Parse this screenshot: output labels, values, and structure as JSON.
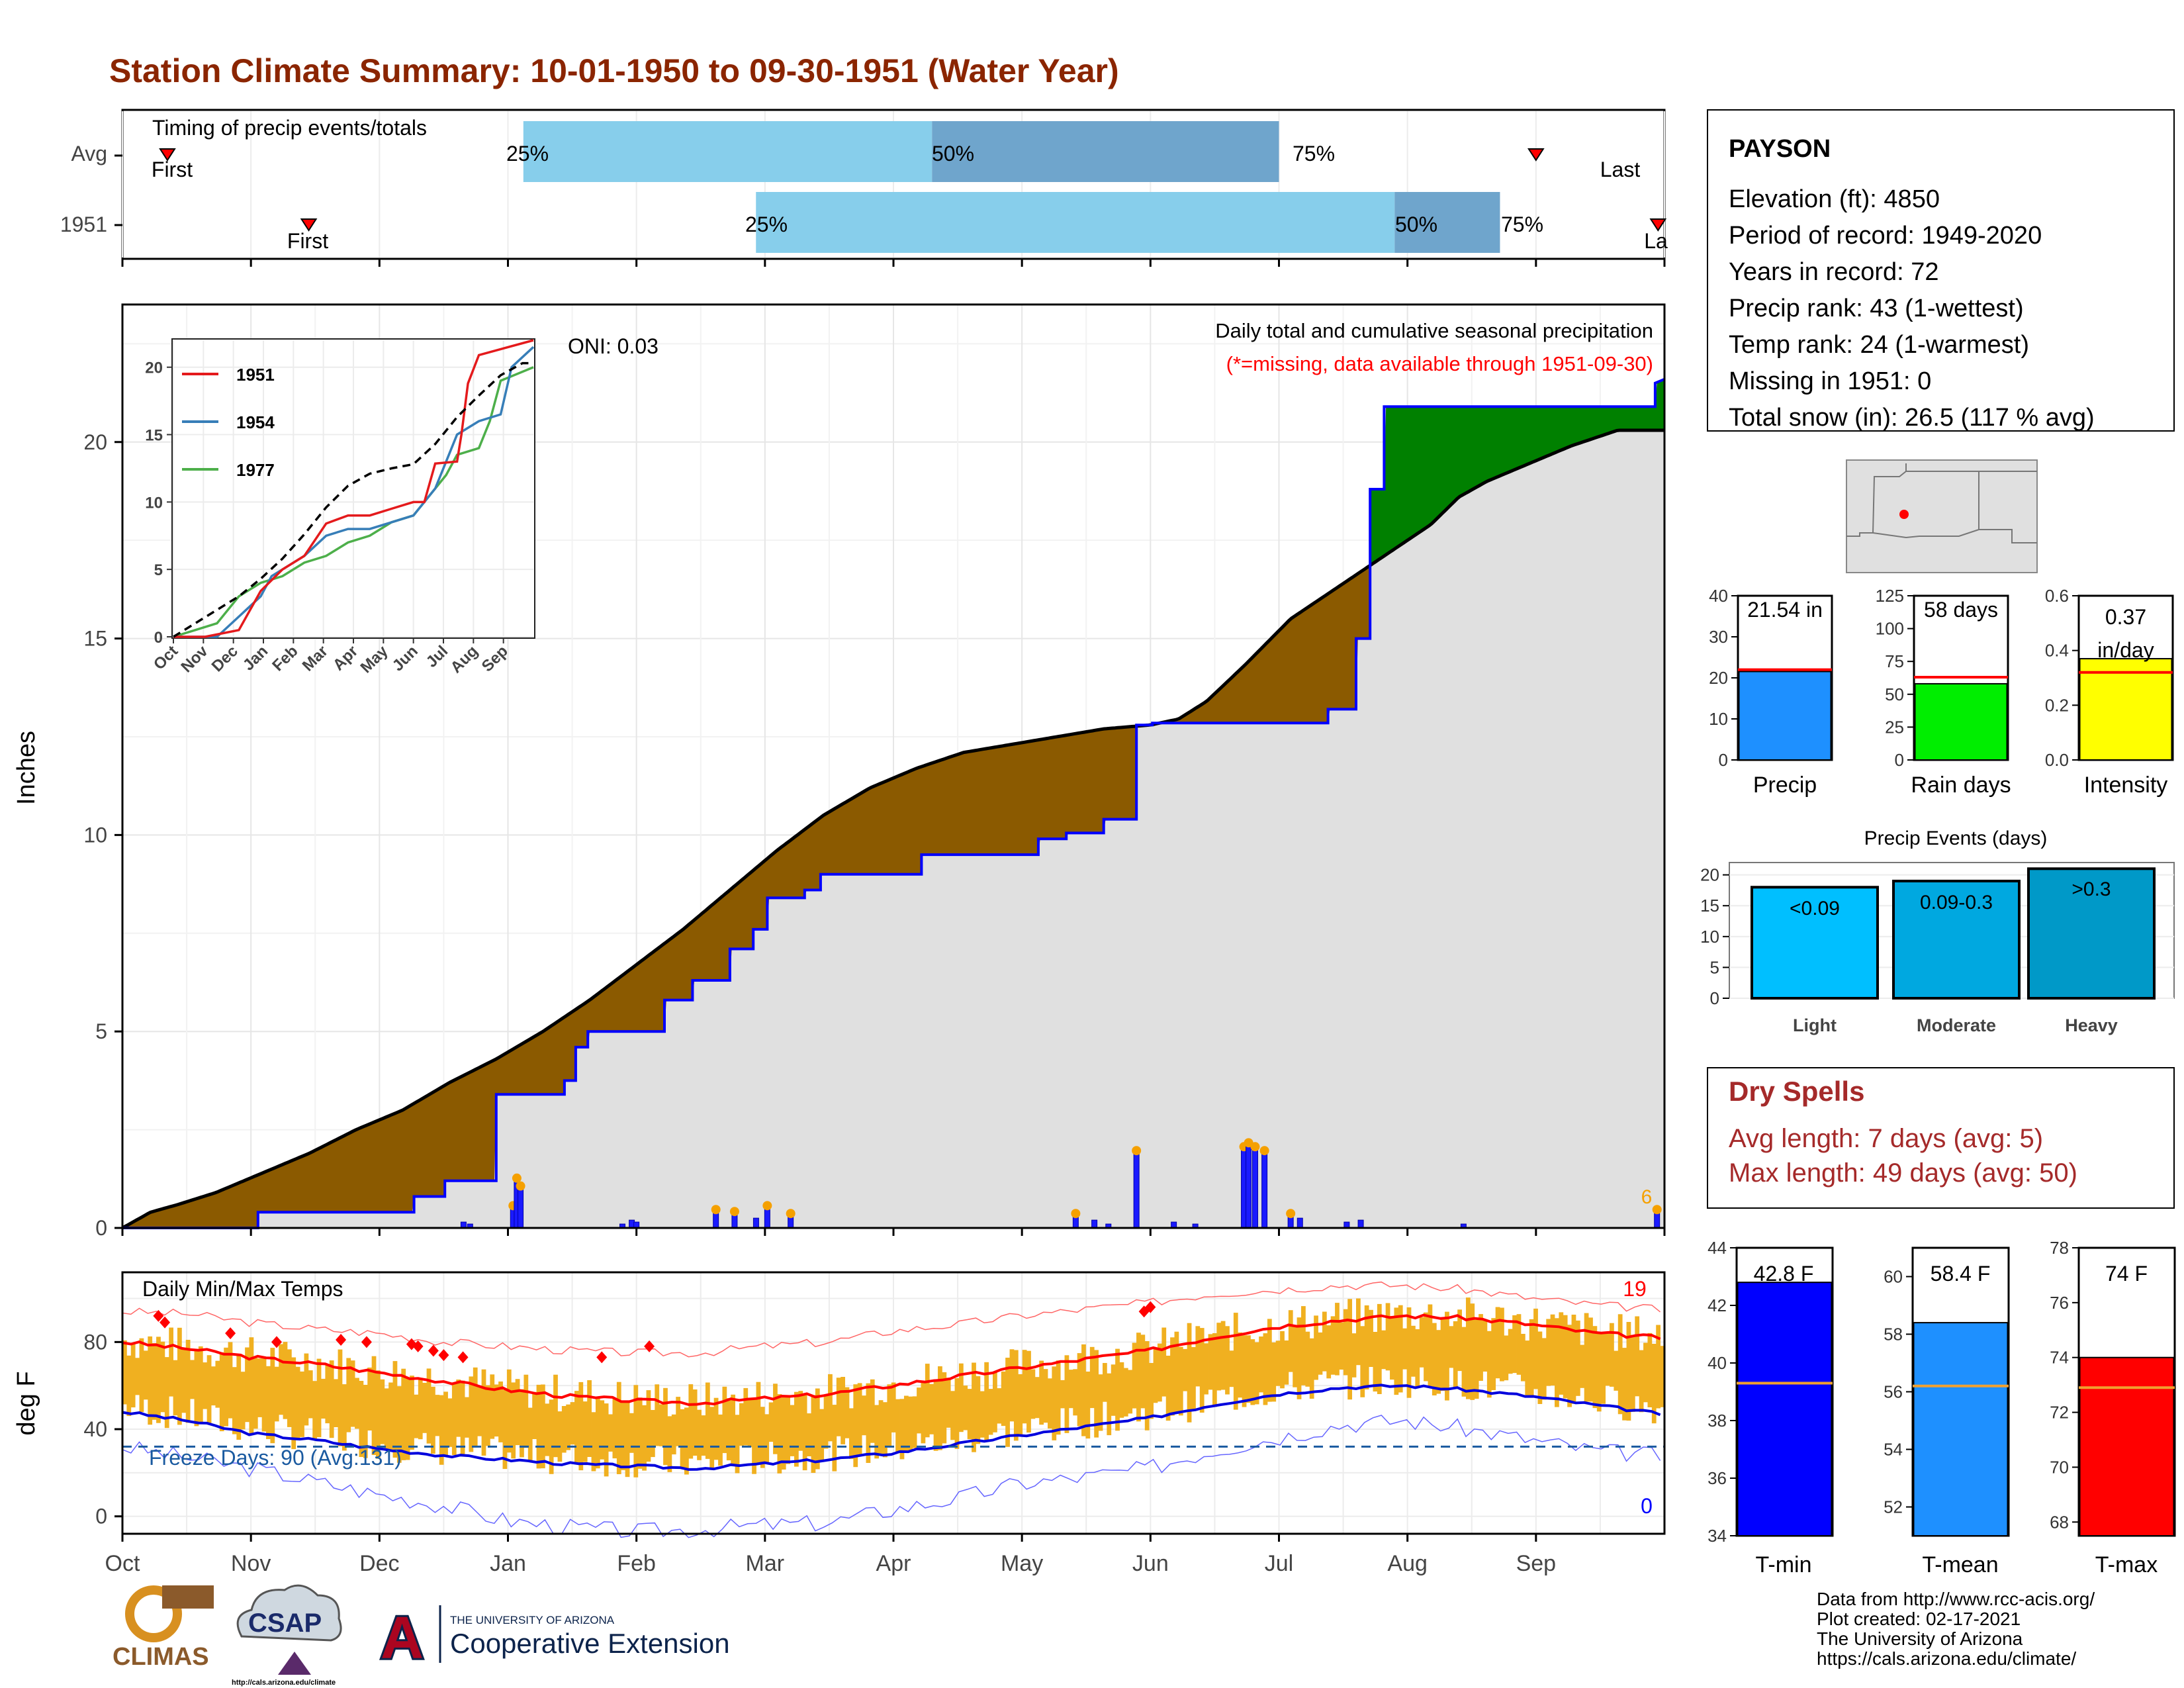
{
  "title": "Station Climate Summary: 10-01-1950 to 09-30-1951 (Water Year)",
  "colors": {
    "title": "#8b2500",
    "brown": "#8b5a00",
    "green": "#008000",
    "gray": "#e0e0e0",
    "lightblue": "#87ceeb",
    "steelblue": "#6fa5cc",
    "orange": "#f0b020",
    "red": "#ff0000",
    "blue": "#0000ff"
  },
  "timing": {
    "title": "Timing of precip events/totals",
    "rows": [
      {
        "label": "Avg",
        "first_label": "First",
        "last_label": "Last",
        "first_month": 0.35,
        "last_month": 11.0,
        "p25": 3.12,
        "p50": 6.3,
        "p75": 9.0,
        "p25_label": "25%",
        "p50_label": "50%",
        "p75_label": "75%"
      },
      {
        "label": "1951",
        "first_label": "First",
        "last_label": "La",
        "first_month": 1.45,
        "last_month": 11.95,
        "p25": 4.93,
        "p50": 9.9,
        "p75": 10.72,
        "p25_label": "25%",
        "p50_label": "50%",
        "p75_label": "75%"
      }
    ]
  },
  "precip_main": {
    "ylabel": "Inches",
    "yticks": [
      0,
      5,
      10,
      15,
      20
    ],
    "ylim": [
      0,
      23.5
    ],
    "title": "Daily total and cumulative seasonal precipitation",
    "subtitle": "(*=missing, data available through 1951-09-30)",
    "oni": "ONI: 0.03",
    "count_label": "6",
    "avg_cum": [
      [
        0,
        0
      ],
      [
        0.3,
        0.4
      ],
      [
        0.6,
        0.6
      ],
      [
        1,
        0.9
      ],
      [
        1.5,
        1.4
      ],
      [
        2,
        1.9
      ],
      [
        2.5,
        2.5
      ],
      [
        3,
        3
      ],
      [
        3.5,
        3.7
      ],
      [
        4,
        4.3
      ],
      [
        4.5,
        5
      ],
      [
        5,
        5.8
      ],
      [
        5.5,
        6.7
      ],
      [
        6,
        7.6
      ],
      [
        6.5,
        8.6
      ],
      [
        7,
        9.6
      ],
      [
        7.5,
        10.5
      ],
      [
        8,
        11.2
      ],
      [
        8.5,
        11.7
      ],
      [
        9,
        12.1
      ],
      [
        9.5,
        12.3
      ],
      [
        10,
        12.5
      ],
      [
        10.5,
        12.7
      ],
      [
        11,
        12.8
      ],
      [
        11.3,
        12.95
      ],
      [
        11.6,
        13.4
      ],
      [
        12,
        14.3
      ],
      [
        12.5,
        15.5
      ],
      [
        13,
        16.3
      ],
      [
        13.5,
        17.1
      ],
      [
        14,
        17.9
      ],
      [
        14.3,
        18.6
      ],
      [
        14.6,
        19.0
      ],
      [
        15,
        19.4
      ],
      [
        15.5,
        19.9
      ],
      [
        16,
        20.3
      ],
      [
        16.5,
        20.3
      ]
    ],
    "cum_1951": [
      [
        0,
        0
      ],
      [
        1.45,
        0
      ],
      [
        1.45,
        0.4
      ],
      [
        3.12,
        0.4
      ],
      [
        3.12,
        0.8
      ],
      [
        3.45,
        0.8
      ],
      [
        3.45,
        1.2
      ],
      [
        4.0,
        1.2
      ],
      [
        4.0,
        3.4
      ],
      [
        4.73,
        3.4
      ],
      [
        4.73,
        3.75
      ],
      [
        4.85,
        3.75
      ],
      [
        4.85,
        4.6
      ],
      [
        4.98,
        4.6
      ],
      [
        4.98,
        5.0
      ],
      [
        5.8,
        5.0
      ],
      [
        5.8,
        5.8
      ],
      [
        6.1,
        5.8
      ],
      [
        6.1,
        6.3
      ],
      [
        6.5,
        6.3
      ],
      [
        6.5,
        7.1
      ],
      [
        6.75,
        7.1
      ],
      [
        6.75,
        7.6
      ],
      [
        6.9,
        7.6
      ],
      [
        6.9,
        8.4
      ],
      [
        7.3,
        8.4
      ],
      [
        7.3,
        8.6
      ],
      [
        7.47,
        8.6
      ],
      [
        7.47,
        9.0
      ],
      [
        8.2,
        9.0
      ],
      [
        8.55,
        9.0
      ],
      [
        8.55,
        9.5
      ],
      [
        9.0,
        9.5
      ],
      [
        9.8,
        9.5
      ],
      [
        9.8,
        9.9
      ],
      [
        10.1,
        9.9
      ],
      [
        10.1,
        10.05
      ],
      [
        10.5,
        10.05
      ],
      [
        10.5,
        10.4
      ],
      [
        10.85,
        10.4
      ],
      [
        10.85,
        12.8
      ],
      [
        11.02,
        12.8
      ],
      [
        11.02,
        12.85
      ],
      [
        12.9,
        12.85
      ],
      [
        12.9,
        13.2
      ],
      [
        13.2,
        13.2
      ],
      [
        13.2,
        15.0
      ],
      [
        13.35,
        15.0
      ],
      [
        13.35,
        18.8
      ],
      [
        13.5,
        18.8
      ],
      [
        13.5,
        20.9
      ],
      [
        14.4,
        20.9
      ],
      [
        15.9,
        20.9
      ],
      [
        16.4,
        20.9
      ],
      [
        16.4,
        21.5
      ],
      [
        16.5,
        21.6
      ]
    ],
    "daily_bars": [
      [
        3.65,
        0.15
      ],
      [
        3.72,
        0.1
      ],
      [
        4.18,
        0.5
      ],
      [
        4.22,
        1.2
      ],
      [
        4.26,
        1.0
      ],
      [
        5.35,
        0.1
      ],
      [
        5.45,
        0.2
      ],
      [
        5.5,
        0.15
      ],
      [
        6.35,
        0.4
      ],
      [
        6.55,
        0.35
      ],
      [
        6.78,
        0.25
      ],
      [
        6.9,
        0.5
      ],
      [
        7.15,
        0.3
      ],
      [
        10.2,
        0.3
      ],
      [
        10.4,
        0.2
      ],
      [
        10.55,
        0.1
      ],
      [
        10.85,
        1.9
      ],
      [
        11.25,
        0.15
      ],
      [
        11.48,
        0.1
      ],
      [
        12.0,
        2.0
      ],
      [
        12.05,
        2.1
      ],
      [
        12.12,
        2.0
      ],
      [
        12.22,
        1.9
      ],
      [
        12.5,
        0.3
      ],
      [
        12.6,
        0.25
      ],
      [
        13.1,
        0.15
      ],
      [
        13.25,
        0.2
      ],
      [
        14.35,
        0.1
      ],
      [
        16.42,
        0.4
      ]
    ]
  },
  "inset": {
    "legend": [
      "1951",
      "1954",
      "1977"
    ],
    "legend_colors": [
      "#e41a1c",
      "#377eb8",
      "#4daf4a"
    ],
    "yticks": [
      0,
      5,
      10,
      15,
      20
    ],
    "xticks": [
      "Oct",
      "Nov",
      "Dec",
      "Jan",
      "Feb",
      "Mar",
      "Apr",
      "May",
      "Jun",
      "Jul",
      "Aug",
      "Sep"
    ],
    "ylim": [
      0,
      22
    ],
    "avg": [
      [
        0,
        0
      ],
      [
        1,
        1
      ],
      [
        2,
        2
      ],
      [
        3,
        3
      ],
      [
        4,
        4.3
      ],
      [
        5,
        5.8
      ],
      [
        6,
        7.6
      ],
      [
        7,
        9.6
      ],
      [
        8,
        11.2
      ],
      [
        9,
        12.1
      ],
      [
        10,
        12.5
      ],
      [
        11,
        12.8
      ],
      [
        12,
        14.3
      ],
      [
        13,
        16.3
      ],
      [
        14,
        17.9
      ],
      [
        15,
        19.4
      ],
      [
        16,
        20.3
      ],
      [
        16.5,
        20.3
      ]
    ],
    "series_1951": [
      [
        0,
        0
      ],
      [
        1.45,
        0
      ],
      [
        3,
        0.5
      ],
      [
        4,
        3.4
      ],
      [
        5,
        5
      ],
      [
        6,
        6
      ],
      [
        7,
        8.4
      ],
      [
        8,
        9
      ],
      [
        9,
        9
      ],
      [
        10,
        9.5
      ],
      [
        11,
        10
      ],
      [
        11.5,
        10
      ],
      [
        12,
        12.85
      ],
      [
        13,
        13
      ],
      [
        13.2,
        15
      ],
      [
        13.5,
        18.8
      ],
      [
        14,
        20.9
      ],
      [
        16.5,
        22
      ]
    ],
    "series_1954": [
      [
        0,
        0
      ],
      [
        2,
        0
      ],
      [
        3,
        1.5
      ],
      [
        4,
        3
      ],
      [
        4.5,
        4.5
      ],
      [
        5,
        5
      ],
      [
        6,
        6
      ],
      [
        7,
        7.5
      ],
      [
        8,
        8
      ],
      [
        9,
        8
      ],
      [
        10,
        8.5
      ],
      [
        11,
        9
      ],
      [
        12,
        11
      ],
      [
        12.5,
        13
      ],
      [
        13,
        15
      ],
      [
        14,
        16
      ],
      [
        15,
        16.5
      ],
      [
        15.5,
        20
      ],
      [
        16.5,
        21.5
      ]
    ],
    "series_1977": [
      [
        0,
        0
      ],
      [
        1,
        0.5
      ],
      [
        2,
        1
      ],
      [
        3,
        3
      ],
      [
        4,
        4
      ],
      [
        5,
        4.5
      ],
      [
        6,
        5.5
      ],
      [
        7,
        6
      ],
      [
        8,
        7
      ],
      [
        9,
        7.5
      ],
      [
        10,
        8.5
      ],
      [
        11,
        9
      ],
      [
        12,
        11
      ],
      [
        12.5,
        12
      ],
      [
        13,
        13.5
      ],
      [
        14,
        14
      ],
      [
        14.5,
        16
      ],
      [
        15,
        19
      ],
      [
        16.5,
        20
      ]
    ]
  },
  "station": {
    "name": "PAYSON",
    "lines": [
      "Elevation (ft): 4850",
      "Period of record: 1949-2020",
      "Years in record: 72",
      "Precip rank: 43 (1-wettest)",
      "Temp rank: 24 (1-warmest)",
      "Missing in 1951: 0",
      "Total snow (in): 26.5 (117 % avg)"
    ]
  },
  "mini_bars": {
    "precip": {
      "label": "Precip",
      "value_label": "21.54 in",
      "value": 21.54,
      "avg": 22.0,
      "ymax": 40,
      "yticks": [
        0,
        10,
        20,
        30,
        40
      ],
      "color": "#1e90ff"
    },
    "rain_days": {
      "label": "Rain days",
      "value_label": "58 days",
      "value": 58,
      "avg": 63,
      "ymax": 125,
      "yticks": [
        0,
        25,
        50,
        75,
        100,
        125
      ],
      "color": "#00ee00"
    },
    "intensity": {
      "label": "Intensity",
      "value_label_1": "0.37",
      "value_label_2": "in/day",
      "value": 0.37,
      "avg": 0.32,
      "ymax": 0.6,
      "yticks": [
        "0.0",
        "0.2",
        "0.4",
        "0.6"
      ],
      "color": "#ffff00"
    }
  },
  "precip_events": {
    "title": "Precip Events (days)",
    "yticks": [
      0,
      5,
      10,
      15,
      20
    ],
    "ymax": 22,
    "bars": [
      {
        "cat": "Light",
        "label": "<0.09",
        "value": 18,
        "color": "#00bfff"
      },
      {
        "cat": "Moderate",
        "label": "0.09-0.3",
        "value": 19,
        "color": "#00a8e0"
      },
      {
        "cat": "Heavy",
        "label": ">0.3",
        "value": 21,
        "color": "#0099c8"
      }
    ]
  },
  "dry_spells": {
    "title": "Dry Spells",
    "avg_length": "Avg length: 7 days (avg: 5)",
    "max_length": "Max length: 49 days (avg: 50)"
  },
  "temp": {
    "ylabel": "deg F",
    "title": "Daily Min/Max Temps",
    "yticks": [
      0,
      40,
      80
    ],
    "ylim": [
      -8,
      112
    ],
    "freeze_line": 32,
    "freeze_label": "Freeze Days: 90 (Avg:131)",
    "hot_count": "19",
    "cold_count": "0",
    "months": [
      "Oct",
      "Nov",
      "Dec",
      "Jan",
      "Feb",
      "Mar",
      "Apr",
      "May",
      "Jun",
      "Jul",
      "Aug",
      "Sep"
    ],
    "avg_max": [
      80,
      77,
      73,
      70,
      66,
      62,
      58,
      55,
      53,
      52,
      54,
      56,
      60,
      64,
      68,
      72,
      76,
      82,
      87,
      90,
      92,
      91,
      88,
      84,
      82
    ],
    "avg_min": [
      48,
      44,
      38,
      35,
      31,
      28,
      26,
      24,
      23,
      22,
      24,
      26,
      29,
      33,
      37,
      41,
      45,
      51,
      56,
      59,
      60,
      58,
      55,
      51,
      47
    ],
    "rec_max": [
      94,
      93,
      89,
      86,
      84,
      80,
      78,
      76,
      75,
      75,
      78,
      80,
      85,
      88,
      92,
      95,
      98,
      102,
      104,
      106,
      106,
      104,
      100,
      97,
      95
    ],
    "rec_min": [
      32,
      27,
      22,
      16,
      10,
      5,
      -2,
      -5,
      -7,
      -6,
      -4,
      -3,
      3,
      8,
      15,
      18,
      22,
      30,
      36,
      42,
      44,
      40,
      35,
      30,
      28
    ]
  },
  "tbars": {
    "tmin": {
      "label": "T-min",
      "value_label": "42.8 F",
      "value": 42.8,
      "avg": 39.3,
      "ymin": 34,
      "ymax": 44,
      "yticks": [
        34,
        36,
        38,
        40,
        42,
        44
      ],
      "color": "#0000ff"
    },
    "tmean": {
      "label": "T-mean",
      "value_label": "58.4 F",
      "value": 58.4,
      "avg": 56.2,
      "ymin": 51,
      "ymax": 61,
      "yticks": [
        52,
        54,
        56,
        58,
        60
      ],
      "color": "#1e90ff"
    },
    "tmax": {
      "label": "T-max",
      "value_label": "74 F",
      "value": 74,
      "avg": 72.9,
      "ymin": 67.5,
      "ymax": 78,
      "yticks": [
        68,
        70,
        72,
        74,
        76,
        78
      ],
      "color": "#ff0000"
    }
  },
  "footer": {
    "logos": {
      "climas": "CLIMAS",
      "csap": "CSAP",
      "csap_url": "http://cals.arizona.edu/climate",
      "ua_small": "THE UNIVERSITY OF ARIZONA",
      "ua_big": "Cooperative Extension"
    },
    "credits": [
      "Data from http://www.rcc-acis.org/",
      "Plot created: 02-17-2021",
      "The University of Arizona",
      "https://cals.arizona.edu/climate/"
    ]
  }
}
